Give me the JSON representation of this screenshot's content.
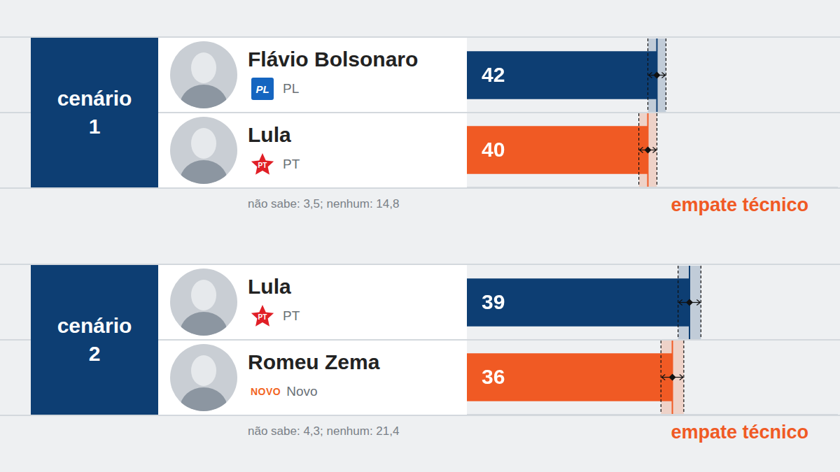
{
  "chart_data": [
    {
      "type": "bar",
      "orientation": "horizontal",
      "title": "cenário 1",
      "categories": [
        "Flávio Bolsonaro",
        "Lula"
      ],
      "parties": [
        "PL",
        "PT"
      ],
      "party_logos": [
        "PL",
        "PT"
      ],
      "party_markers": [
        "square",
        "star"
      ],
      "party_colors": [
        "#1565c0",
        "#e01f26"
      ],
      "values": [
        42,
        40
      ],
      "errors": [
        2,
        2
      ],
      "colors": [
        "#0d3e73",
        "#f05a24"
      ],
      "xlim": [
        0,
        82
      ],
      "xticks": [],
      "tick_labels": false,
      "grid": false,
      "data_labels": true,
      "note": "não sabe: 3,5; nenhum: 14,8",
      "annotation": "empate técnico"
    },
    {
      "type": "bar",
      "orientation": "horizontal",
      "title": "cenário 2",
      "categories": [
        "Lula",
        "Romeu Zema"
      ],
      "parties": [
        "PT",
        "Novo"
      ],
      "party_logos": [
        "PT",
        "NOVO"
      ],
      "party_markers": [
        "star",
        "text"
      ],
      "party_colors": [
        "#e01f26",
        "#f26522"
      ],
      "values": [
        39,
        36
      ],
      "errors": [
        2,
        2
      ],
      "colors": [
        "#0d3e73",
        "#f05a24"
      ],
      "xlim": [
        0,
        65
      ],
      "xticks": [],
      "tick_labels": false,
      "grid": false,
      "data_labels": true,
      "note": "não sabe: 4,3; nenhum: 21,4",
      "annotation": "empate técnico"
    }
  ]
}
